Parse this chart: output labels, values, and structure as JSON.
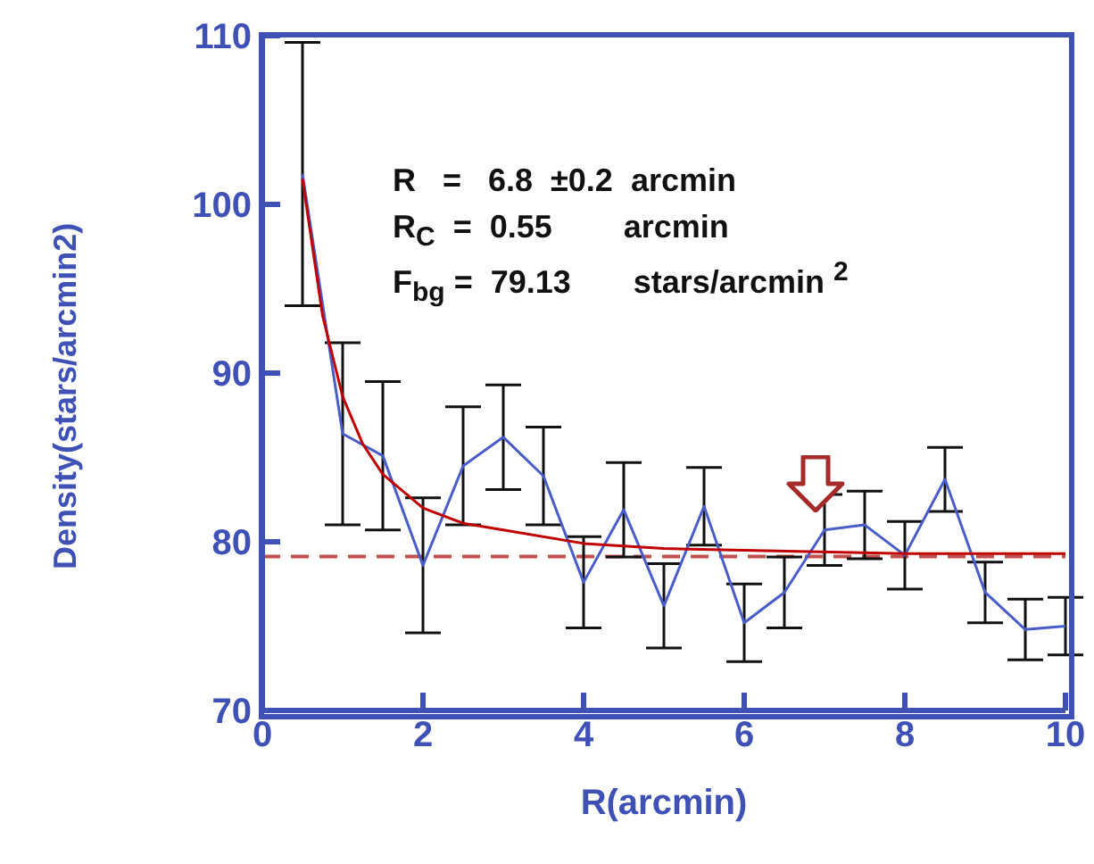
{
  "chart_data": {
    "type": "line",
    "xlabel": "R(arcmin)",
    "ylabel": "Density(stars/arcmin2)",
    "xlim": [
      0,
      10
    ],
    "xticks": [
      0,
      2,
      4,
      6,
      8,
      10
    ],
    "ylim": [
      70,
      110
    ],
    "yticks": [
      70,
      80,
      90,
      100,
      110
    ],
    "x": [
      0.5,
      1,
      1.5,
      2,
      2.5,
      3,
      3.5,
      4,
      4.5,
      5,
      5.5,
      6,
      6.5,
      7,
      7.5,
      8,
      8.5,
      9,
      9.5,
      10
    ],
    "series": [
      {
        "color": "#4a5cc8",
        "values": [
          101.8,
          86.4,
          85.1,
          78.6,
          84.5,
          86.2,
          83.9,
          77.6,
          81.9,
          76.2,
          82.1,
          75.2,
          77.0,
          80.7,
          81.0,
          79.2,
          83.7,
          77.0,
          74.8,
          75.0
        ],
        "errors": [
          7.8,
          5.4,
          4.4,
          4.0,
          3.5,
          3.1,
          2.9,
          2.7,
          2.8,
          2.5,
          2.3,
          2.3,
          2.1,
          2.1,
          2.0,
          2.0,
          1.9,
          1.8,
          1.8,
          1.7
        ]
      },
      {
        "type": "line",
        "color": "#c00000",
        "x": [
          0.5,
          0.75,
          1,
          1.25,
          1.5,
          2,
          2.5,
          3,
          4,
          5,
          6,
          8,
          10
        ],
        "values": [
          101.5,
          93.4,
          88.6,
          85.8,
          84.0,
          82.0,
          81.1,
          80.7,
          79.9,
          79.6,
          79.5,
          79.3,
          79.3
        ]
      }
    ],
    "ref_lines": [
      {
        "axis": "y",
        "value": 79.13,
        "color": "#c0504d",
        "line_style": "dashed"
      }
    ],
    "annotations": [
      "R   =   6.8  ±0.2  arcmin",
      "R$_{C}$  =  0.55        arcmin",
      "F$_{bg}$ =  79.13       stars/arcmin $^{2}$"
    ],
    "marker": "none"
  }
}
